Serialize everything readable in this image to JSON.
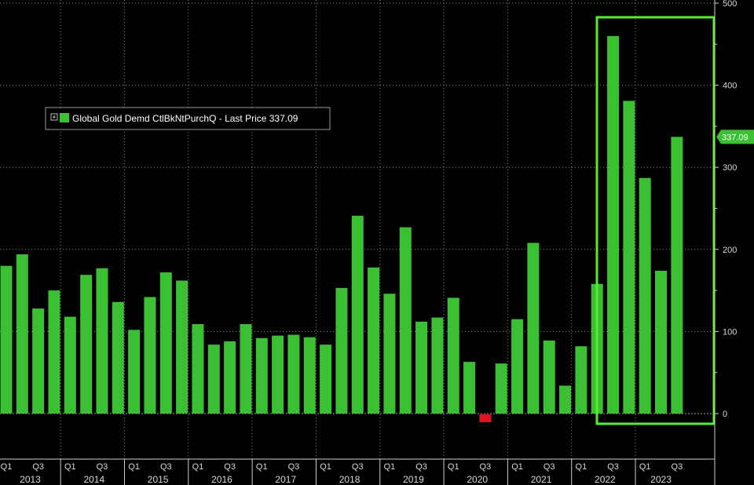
{
  "chart_data": {
    "type": "bar",
    "ylim": [
      -60,
      500
    ],
    "y_ticks": [
      0,
      100,
      200,
      300,
      400,
      500
    ],
    "grid": true,
    "legend_position": "top-left",
    "highlight_range": [
      "2022 Q1",
      "2023 Q3"
    ],
    "colors": {
      "positive": "#3bbf33",
      "negative": "#e0141e",
      "background": "#000000",
      "highlight": "#55ee33"
    },
    "legend": {
      "icon": "expand-box-icon",
      "label": "Global Gold Demd CtlBkNtPurchQ - Last Price 337.09"
    },
    "last_price_label": "337.09",
    "last_price": 337.09,
    "years": [
      "2013",
      "2014",
      "2015",
      "2016",
      "2017",
      "2018",
      "2019",
      "2020",
      "2021",
      "2022",
      "2023"
    ],
    "quarter_labels": [
      "Q1",
      "Q3"
    ],
    "series": [
      {
        "values": [
          180,
          194,
          128,
          150,
          118,
          169,
          177,
          136,
          102,
          142,
          172,
          162,
          109,
          84,
          88,
          109,
          92,
          95,
          96,
          93,
          84,
          153,
          241,
          178,
          146,
          227,
          112,
          117,
          141,
          63,
          -10,
          61,
          115,
          208,
          89,
          34,
          82,
          158,
          460,
          381,
          287,
          174,
          337.09
        ]
      }
    ]
  }
}
